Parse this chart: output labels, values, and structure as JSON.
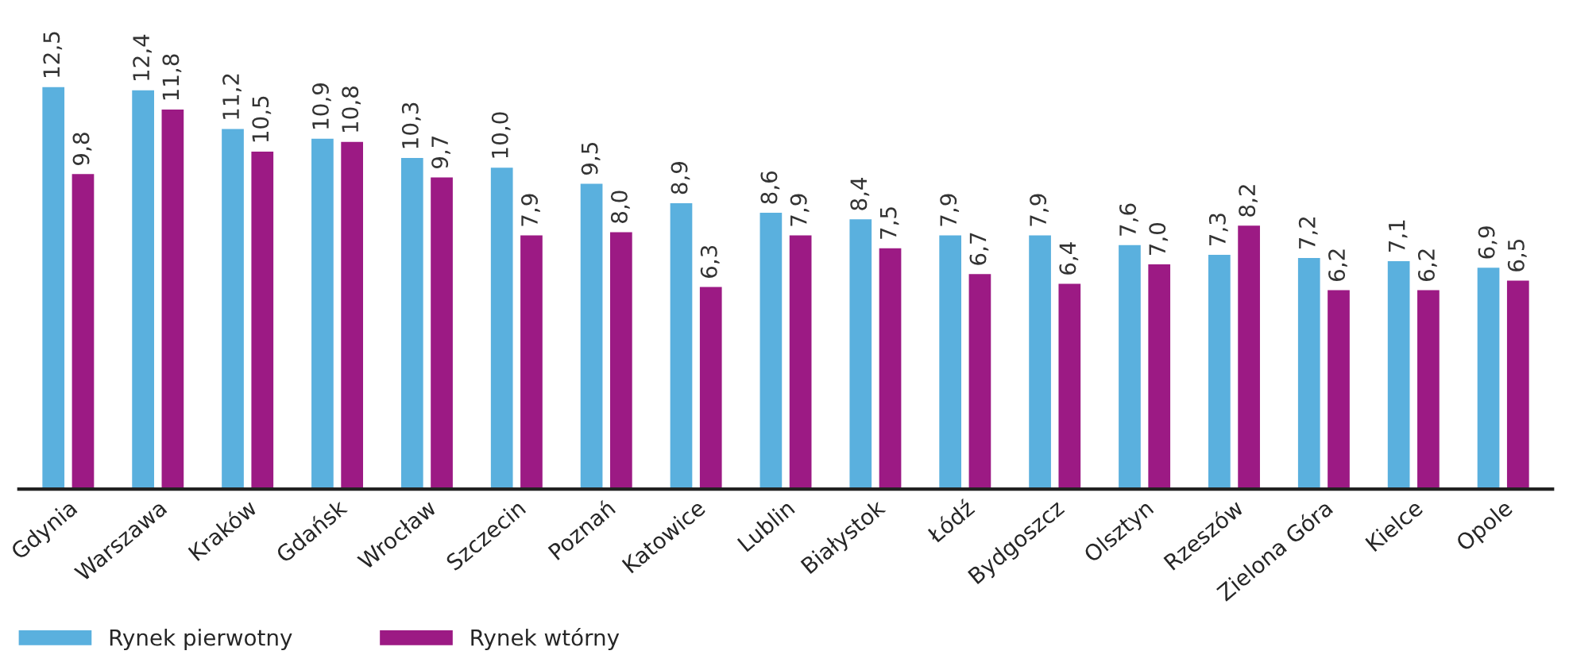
{
  "chart_data": {
    "type": "bar",
    "categories": [
      "Gdynia",
      "Warszawa",
      "Kraków",
      "Gdańsk",
      "Wrocław",
      "Szczecin",
      "Poznań",
      "Katowice",
      "Lublin",
      "Białystok",
      "Łódź",
      "Bydgoszcz",
      "Olsztyn",
      "Rzeszów",
      "Zielona Góra",
      "Kielce",
      "Opole"
    ],
    "series": [
      {
        "name": "Rynek pierwotny",
        "color": "#5ab0de",
        "values": [
          12.5,
          12.4,
          11.2,
          10.9,
          10.3,
          10.0,
          9.5,
          8.9,
          8.6,
          8.4,
          7.9,
          7.9,
          7.6,
          7.3,
          7.2,
          7.1,
          6.9
        ],
        "value_labels": [
          "12,5",
          "12,4",
          "11,2",
          "10,9",
          "10,3",
          "10,0",
          "9,5",
          "8,9",
          "8,6",
          "8,4",
          "7,9",
          "7,9",
          "7,6",
          "7,3",
          "7,2",
          "7,1",
          "6,9"
        ]
      },
      {
        "name": "Rynek wtórny",
        "color": "#9c1a84",
        "values": [
          9.8,
          11.8,
          10.5,
          10.8,
          9.7,
          7.9,
          8.0,
          6.3,
          7.9,
          7.5,
          6.7,
          6.4,
          7.0,
          8.2,
          6.2,
          6.2,
          6.5
        ],
        "value_labels": [
          "9,8",
          "11,8",
          "10,5",
          "10,8",
          "9,7",
          "7,9",
          "8,0",
          "6,3",
          "7,9",
          "7,5",
          "6,7",
          "6,4",
          "7,0",
          "8,2",
          "6,2",
          "6,2",
          "6,5"
        ]
      }
    ],
    "legend": "bottom left",
    "grid": false
  }
}
